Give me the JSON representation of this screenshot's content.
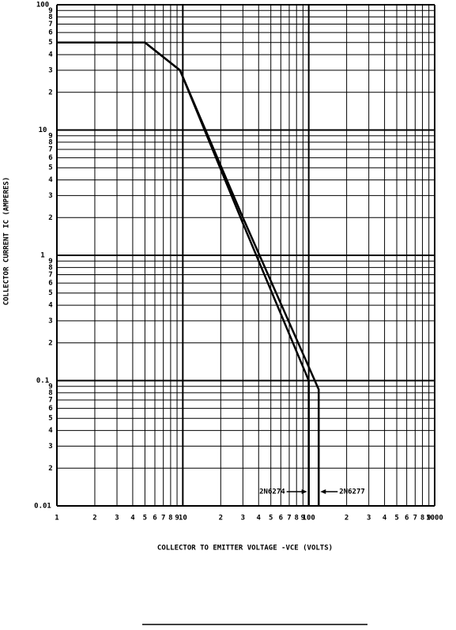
{
  "chart_data": {
    "type": "line",
    "xlabel": "COLLECTOR TO EMITTER VOLTAGE -VCE (VOLTS)",
    "ylabel": "COLLECTOR CURRENT IC (AMPERES)",
    "xscale": "log",
    "yscale": "log",
    "grid": true,
    "xlim": [
      1,
      1000
    ],
    "ylim": [
      0.01,
      100
    ],
    "xticks": [
      1,
      2,
      3,
      4,
      5,
      6,
      7,
      8,
      9,
      10,
      {
        "value": 20,
        "label": "2"
      },
      {
        "value": 30,
        "label": "3"
      },
      {
        "value": 40,
        "label": "4"
      },
      {
        "value": 50,
        "label": "5"
      },
      {
        "value": 60,
        "label": "6"
      },
      {
        "value": 70,
        "label": "7"
      },
      {
        "value": 80,
        "label": "8"
      },
      {
        "value": 90,
        "label": "9"
      },
      100,
      {
        "value": 200,
        "label": "2"
      },
      {
        "value": 300,
        "label": "3"
      },
      {
        "value": 400,
        "label": "4"
      },
      {
        "value": 500,
        "label": "5"
      },
      {
        "value": 600,
        "label": "6"
      },
      {
        "value": 700,
        "label": "7"
      },
      {
        "value": 800,
        "label": "8"
      },
      {
        "value": 900,
        "label": "9"
      },
      1000
    ],
    "yticks": [
      0.01,
      {
        "value": 0.02,
        "label": "2"
      },
      {
        "value": 0.03,
        "label": "3"
      },
      {
        "value": 0.04,
        "label": "4"
      },
      {
        "value": 0.05,
        "label": "5"
      },
      {
        "value": 0.06,
        "label": "6"
      },
      {
        "value": 0.07,
        "label": "7"
      },
      {
        "value": 0.08,
        "label": "8"
      },
      {
        "value": 0.09,
        "label": "9"
      },
      0.1,
      {
        "value": 0.2,
        "label": "2"
      },
      {
        "value": 0.3,
        "label": "3"
      },
      {
        "value": 0.4,
        "label": "4"
      },
      {
        "value": 0.5,
        "label": "5"
      },
      {
        "value": 0.6,
        "label": "6"
      },
      {
        "value": 0.7,
        "label": "7"
      },
      {
        "value": 0.8,
        "label": "8"
      },
      {
        "value": 0.9,
        "label": "9"
      },
      1,
      2,
      3,
      4,
      5,
      6,
      7,
      8,
      9,
      10,
      {
        "value": 20,
        "label": "2"
      },
      {
        "value": 30,
        "label": "3"
      },
      {
        "value": 40,
        "label": "4"
      },
      {
        "value": 50,
        "label": "5"
      },
      {
        "value": 60,
        "label": "6"
      },
      {
        "value": 70,
        "label": "7"
      },
      {
        "value": 80,
        "label": "8"
      },
      {
        "value": 90,
        "label": "9"
      },
      100
    ],
    "series": [
      {
        "name": "2N6274",
        "color": "#000000",
        "x": [
          1,
          5,
          9.5,
          30,
          100,
          100
        ],
        "values": [
          50,
          50,
          30,
          1.8,
          0.1,
          0.01
        ]
      },
      {
        "name": "2N6277",
        "color": "#000000",
        "x": [
          1,
          5,
          9.5,
          30,
          120,
          120
        ],
        "values": [
          50,
          50,
          30,
          2,
          0.085,
          0.01
        ]
      }
    ]
  }
}
